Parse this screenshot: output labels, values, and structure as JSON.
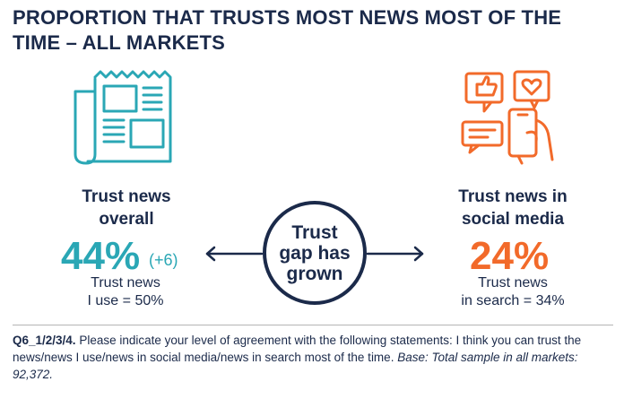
{
  "title": "PROPORTION THAT TRUSTS MOST NEWS MOST OF THE TIME – ALL MARKETS",
  "colors": {
    "navy": "#1b2a4a",
    "teal": "#2aa7b5",
    "orange": "#f26a2a"
  },
  "left": {
    "icon": "newspaper-icon",
    "label_line1": "Trust news",
    "label_line2": "overall",
    "value": "44%",
    "change": "(+6)",
    "sub_line1": "Trust news",
    "sub_line2": "I use = 50%"
  },
  "center": {
    "line1": "Trust",
    "line2": "gap has",
    "line3": "grown"
  },
  "right": {
    "icon": "social-media-icon",
    "label_line1": "Trust news in",
    "label_line2": "social media",
    "value": "24%",
    "sub_line1": "Trust news",
    "sub_line2": "in search = 34%"
  },
  "footnote": {
    "code": "Q6_1/2/3/4.",
    "text": " Please indicate your level of agreement with the following statements: I think you can trust the news/news I use/news in social media/news in search most of the time. ",
    "base": "Base: Total sample in all markets: 92,372."
  }
}
